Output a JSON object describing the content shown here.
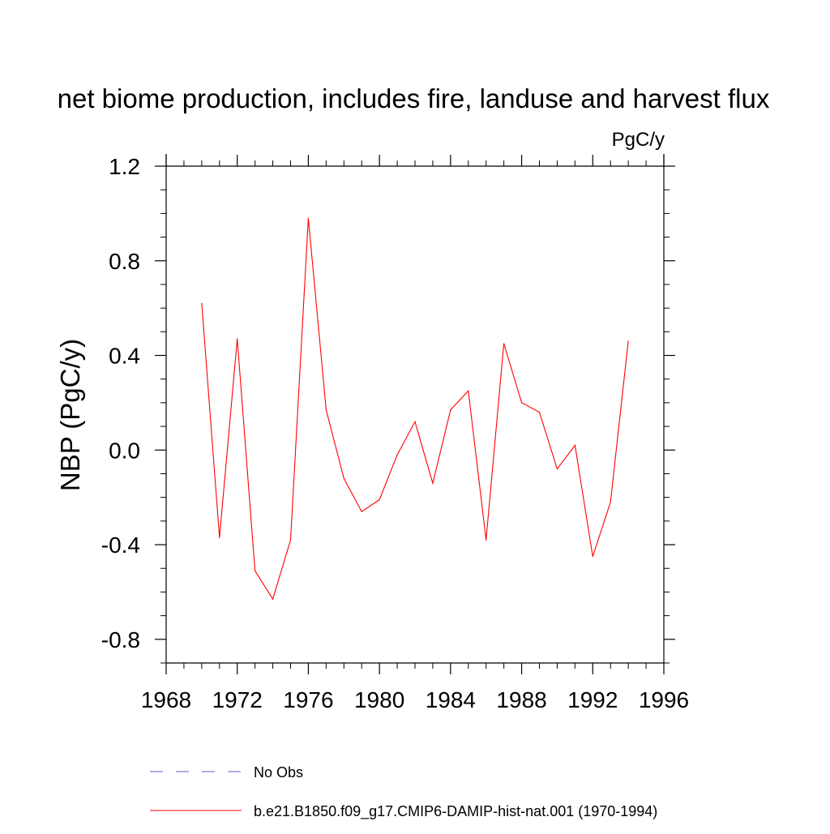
{
  "chart_data": {
    "type": "line",
    "title": "net biome production, includes fire, landuse and harvest flux",
    "units": "PgC/y",
    "xlabel": "",
    "ylabel": "NBP  (PgC/y)",
    "xlim": [
      1968,
      1996
    ],
    "ylim": [
      -0.9,
      1.2
    ],
    "x_major_ticks": [
      1968,
      1972,
      1976,
      1980,
      1984,
      1988,
      1992,
      1996
    ],
    "x_tick_labels": [
      "1968",
      "1972",
      "1976",
      "1980",
      "1984",
      "1988",
      "1992",
      "1996"
    ],
    "y_major_ticks": [
      -0.8,
      -0.4,
      0.0,
      0.4,
      0.8,
      1.2
    ],
    "y_tick_labels": [
      "-0.8",
      "-0.4",
      "0.0",
      "0.4",
      "0.8",
      "1.2"
    ],
    "grid": false,
    "legend_position": "bottom",
    "legend": [
      {
        "label": "No Obs",
        "style": "dashed",
        "color": "#6a5acd"
      },
      {
        "label": "b.e21.B1850.f09_g17.CMIP6-DAMIP-hist-nat.001 (1970-1994)",
        "style": "solid",
        "color": "#ff0000"
      }
    ],
    "series": [
      {
        "name": "b.e21.B1850.f09_g17.CMIP6-DAMIP-hist-nat.001 (1970-1994)",
        "color": "#ff0000",
        "x": [
          1970,
          1971,
          1972,
          1973,
          1974,
          1975,
          1976,
          1977,
          1978,
          1979,
          1980,
          1981,
          1982,
          1983,
          1984,
          1985,
          1986,
          1987,
          1988,
          1989,
          1990,
          1991,
          1992,
          1993,
          1994
        ],
        "y": [
          0.62,
          -0.37,
          0.47,
          -0.51,
          -0.63,
          -0.38,
          0.98,
          0.17,
          -0.12,
          -0.26,
          -0.21,
          -0.02,
          0.12,
          -0.14,
          0.17,
          0.25,
          -0.38,
          0.45,
          0.2,
          0.16,
          -0.08,
          0.02,
          -0.45,
          -0.22,
          0.46
        ]
      }
    ]
  }
}
